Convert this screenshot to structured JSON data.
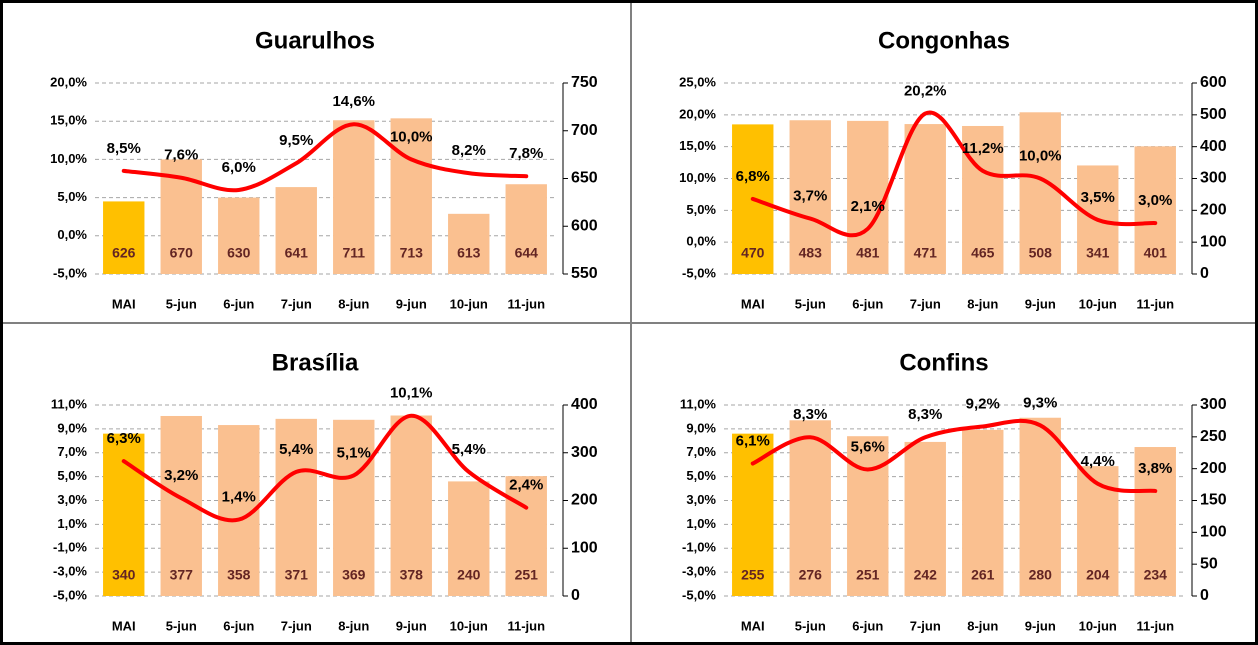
{
  "chart_data": [
    {
      "type": "bar-line",
      "title": "Guarulhos",
      "categories": [
        "MAI",
        "5-jun",
        "6-jun",
        "7-jun",
        "8-jun",
        "9-jun",
        "10-jun",
        "11-jun"
      ],
      "series": [
        {
          "type": "bar",
          "axis": "y2",
          "colors": [
            "#FFC000",
            "#FAC090",
            "#FAC090",
            "#FAC090",
            "#FAC090",
            "#FAC090",
            "#FAC090",
            "#FAC090"
          ],
          "values": [
            626,
            670,
            630,
            641,
            711,
            713,
            613,
            644
          ]
        },
        {
          "type": "line",
          "color": "#FF0000",
          "values": [
            8.5,
            7.6,
            6.0,
            9.5,
            14.6,
            10.0,
            8.2,
            7.8
          ],
          "value_labels": [
            "8,5%",
            "7,6%",
            "6,0%",
            "9,5%",
            "14,6%",
            "10,0%",
            "8,2%",
            "7,8%"
          ]
        }
      ],
      "ylim": [
        -5,
        20
      ],
      "yticks": [
        {
          "value": -5,
          "label": "-5,0%"
        },
        {
          "value": 0,
          "label": "0,0%"
        },
        {
          "value": 5,
          "label": "5,0%"
        },
        {
          "value": 10,
          "label": "10,0%"
        },
        {
          "value": 15,
          "label": "15,0%"
        },
        {
          "value": 20,
          "label": "20,0%"
        }
      ],
      "y2lim": [
        550,
        750
      ],
      "y2ticks": [
        550,
        600,
        650,
        700,
        750
      ],
      "grid": true
    },
    {
      "type": "bar-line",
      "title": "Congonhas",
      "categories": [
        "MAI",
        "5-jun",
        "6-jun",
        "7-jun",
        "8-jun",
        "9-jun",
        "10-jun",
        "11-jun"
      ],
      "series": [
        {
          "type": "bar",
          "axis": "y2",
          "colors": [
            "#FFC000",
            "#FAC090",
            "#FAC090",
            "#FAC090",
            "#FAC090",
            "#FAC090",
            "#FAC090",
            "#FAC090"
          ],
          "values": [
            470,
            483,
            481,
            471,
            465,
            508,
            341,
            401
          ]
        },
        {
          "type": "line",
          "color": "#FF0000",
          "values": [
            6.8,
            3.7,
            2.1,
            20.2,
            11.2,
            10.0,
            3.5,
            3.0
          ],
          "value_labels": [
            "6,8%",
            "3,7%",
            "2,1%",
            "20,2%",
            "11,2%",
            "10,0%",
            "3,5%",
            "3,0%"
          ]
        }
      ],
      "ylim": [
        -5,
        25
      ],
      "yticks": [
        {
          "value": -5,
          "label": "-5,0%"
        },
        {
          "value": 0,
          "label": "0,0%"
        },
        {
          "value": 5,
          "label": "5,0%"
        },
        {
          "value": 10,
          "label": "10,0%"
        },
        {
          "value": 15,
          "label": "15,0%"
        },
        {
          "value": 20,
          "label": "20,0%"
        },
        {
          "value": 25,
          "label": "25,0%"
        }
      ],
      "y2lim": [
        0,
        600
      ],
      "y2ticks": [
        0,
        100,
        200,
        300,
        400,
        500,
        600
      ],
      "grid": true
    },
    {
      "type": "bar-line",
      "title": "Brasília",
      "categories": [
        "MAI",
        "5-jun",
        "6-jun",
        "7-jun",
        "8-jun",
        "9-jun",
        "10-jun",
        "11-jun"
      ],
      "series": [
        {
          "type": "bar",
          "axis": "y2",
          "colors": [
            "#FFC000",
            "#FAC090",
            "#FAC090",
            "#FAC090",
            "#FAC090",
            "#FAC090",
            "#FAC090",
            "#FAC090"
          ],
          "values": [
            340,
            377,
            358,
            371,
            369,
            378,
            240,
            251
          ]
        },
        {
          "type": "line",
          "color": "#FF0000",
          "values": [
            6.3,
            3.2,
            1.4,
            5.4,
            5.1,
            10.1,
            5.4,
            2.4
          ],
          "value_labels": [
            "6,3%",
            "3,2%",
            "1,4%",
            "5,4%",
            "5,1%",
            "10,1%",
            "5,4%",
            "2,4%"
          ]
        }
      ],
      "ylim": [
        -5,
        11
      ],
      "yticks": [
        {
          "value": -5,
          "label": "-5,0%"
        },
        {
          "value": -3,
          "label": "-3,0%"
        },
        {
          "value": -1,
          "label": "-1,0%"
        },
        {
          "value": 1,
          "label": "1,0%"
        },
        {
          "value": 3,
          "label": "3,0%"
        },
        {
          "value": 5,
          "label": "5,0%"
        },
        {
          "value": 7,
          "label": "7,0%"
        },
        {
          "value": 9,
          "label": "9,0%"
        },
        {
          "value": 11,
          "label": "11,0%"
        }
      ],
      "y2lim": [
        0,
        400
      ],
      "y2ticks": [
        0,
        100,
        200,
        300,
        400
      ],
      "grid": true
    },
    {
      "type": "bar-line",
      "title": "Confins",
      "categories": [
        "MAI",
        "5-jun",
        "6-jun",
        "7-jun",
        "8-jun",
        "9-jun",
        "10-jun",
        "11-jun"
      ],
      "series": [
        {
          "type": "bar",
          "axis": "y2",
          "colors": [
            "#FFC000",
            "#FAC090",
            "#FAC090",
            "#FAC090",
            "#FAC090",
            "#FAC090",
            "#FAC090",
            "#FAC090"
          ],
          "values": [
            255,
            276,
            251,
            242,
            261,
            280,
            204,
            234
          ]
        },
        {
          "type": "line",
          "color": "#FF0000",
          "values": [
            6.1,
            8.3,
            5.6,
            8.3,
            9.2,
            9.3,
            4.4,
            3.8
          ],
          "value_labels": [
            "6,1%",
            "8,3%",
            "5,6%",
            "8,3%",
            "9,2%",
            "9,3%",
            "4,4%",
            "3,8%"
          ]
        }
      ],
      "ylim": [
        -5,
        11
      ],
      "yticks": [
        {
          "value": -5,
          "label": "-5,0%"
        },
        {
          "value": -3,
          "label": "-3,0%"
        },
        {
          "value": -1,
          "label": "-1,0%"
        },
        {
          "value": 1,
          "label": "1,0%"
        },
        {
          "value": 3,
          "label": "3,0%"
        },
        {
          "value": 5,
          "label": "5,0%"
        },
        {
          "value": 7,
          "label": "7,0%"
        },
        {
          "value": 9,
          "label": "9,0%"
        },
        {
          "value": 11,
          "label": "11,0%"
        }
      ],
      "y2lim": [
        0,
        300
      ],
      "y2ticks": [
        0,
        50,
        100,
        150,
        200,
        250,
        300
      ],
      "grid": true
    }
  ]
}
